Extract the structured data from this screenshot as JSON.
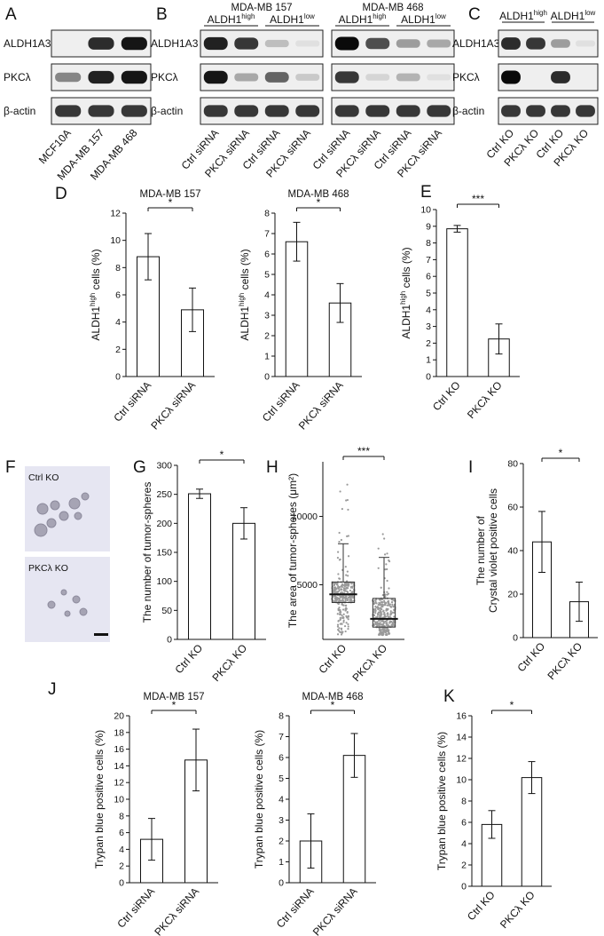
{
  "panels": {
    "A": {
      "letter": "A",
      "rows": [
        "ALDH1A3",
        "PKCλ",
        "β-actin"
      ],
      "lanes": [
        "MCF10A",
        "MDA-MB 157",
        "MDA-MB 468"
      ],
      "intensity": [
        [
          0,
          0.85,
          0.95
        ],
        [
          0.45,
          0.9,
          0.95
        ],
        [
          0.8,
          0.8,
          0.8
        ]
      ]
    },
    "B": {
      "letter": "B",
      "rows": [
        "ALDH1A3",
        "PKCλ",
        "β-actin"
      ],
      "blots": [
        {
          "title": "MDA-MB 157",
          "group_high": "ALDH1",
          "group_high_sup": "high",
          "group_low": "ALDH1",
          "group_low_sup": "low",
          "intensity": [
            [
              0.9,
              0.8,
              0.2,
              0.05
            ],
            [
              0.95,
              0.3,
              0.6,
              0.15
            ],
            [
              0.8,
              0.8,
              0.8,
              0.8
            ]
          ]
        },
        {
          "title": "MDA-MB 468",
          "group_high": "ALDH1",
          "group_high_sup": "high",
          "group_low": "ALDH1",
          "group_low_sup": "low",
          "intensity": [
            [
              1,
              0.7,
              0.35,
              0.3
            ],
            [
              0.8,
              0.1,
              0.25,
              0.05
            ],
            [
              0.8,
              0.8,
              0.8,
              0.8
            ]
          ]
        }
      ],
      "lanes": [
        "Ctrl siRNA",
        "PKCλ siRNA",
        "Ctrl siRNA",
        "PKCλ siRNA"
      ]
    },
    "C": {
      "letter": "C",
      "rows": [
        "ALDH1A3",
        "PKCλ",
        "β-actin"
      ],
      "group_high": "ALDH1",
      "group_high_sup": "high",
      "group_low": "ALDH1",
      "group_low_sup": "low",
      "lanes": [
        "Ctrl KO",
        "PKCλ KO",
        "Ctrl KO",
        "PKCλ KO"
      ],
      "intensity": [
        [
          0.85,
          0.8,
          0.35,
          0.05
        ],
        [
          1,
          0,
          0.85,
          0
        ],
        [
          0.8,
          0.8,
          0.8,
          0.8
        ]
      ]
    },
    "F": {
      "letter": "F",
      "image1_label": "Ctrl KO",
      "image2_label": "PKCλ KO"
    }
  },
  "chart_data": [
    {
      "id": "D1",
      "letter": "D",
      "type": "bar",
      "title": "MDA-MB 157",
      "ylabel": "ALDH1",
      "ylabel_sup": "high",
      "ylabel_rest": " cells (%)",
      "categories": [
        "Ctrl siRNA",
        "PKCλ siRNA"
      ],
      "values": [
        8.8,
        4.9
      ],
      "errors": [
        1.7,
        1.6
      ],
      "ylim": [
        0,
        12
      ],
      "ticks": [
        0,
        2,
        4,
        6,
        8,
        10,
        12
      ],
      "sig": "*"
    },
    {
      "id": "D2",
      "letter": "",
      "type": "bar",
      "title": "MDA-MB 468",
      "ylabel": "ALDH1",
      "ylabel_sup": "high",
      "ylabel_rest": " cells (%)",
      "categories": [
        "Ctrl siRNA",
        "PKCλ siRNA"
      ],
      "values": [
        6.6,
        3.6
      ],
      "errors": [
        0.95,
        0.95
      ],
      "ylim": [
        0,
        8
      ],
      "ticks": [
        0,
        1,
        2,
        3,
        4,
        5,
        6,
        7,
        8
      ],
      "sig": "*"
    },
    {
      "id": "E",
      "letter": "E",
      "type": "bar",
      "title": "",
      "ylabel": "ALDH1",
      "ylabel_sup": "high",
      "ylabel_rest": " cells (%)",
      "categories": [
        "Ctrl KO",
        "PKCλ KO"
      ],
      "values": [
        8.85,
        2.25
      ],
      "errors": [
        0.2,
        0.9
      ],
      "ylim": [
        0,
        10
      ],
      "ticks": [
        0,
        1,
        2,
        3,
        4,
        5,
        6,
        7,
        8,
        9,
        10
      ],
      "sig": "***"
    },
    {
      "id": "G",
      "letter": "G",
      "type": "bar",
      "title": "",
      "ylabel": "The number of tumor-spheres",
      "ylabel_sup": "",
      "ylabel_rest": "",
      "categories": [
        "Ctrl KO",
        "PKCλ KO"
      ],
      "values": [
        251,
        200
      ],
      "errors": [
        8,
        27
      ],
      "ylim": [
        0,
        300
      ],
      "ticks": [
        0,
        50,
        100,
        150,
        200,
        250,
        300
      ],
      "sig": "*"
    },
    {
      "id": "H",
      "letter": "H",
      "type": "scatter",
      "title": "",
      "ylabel": "The area of tumor-spheres (μm²)",
      "ylabel_sup": "",
      "ylabel_rest": "",
      "categories": [
        "Ctrl KO",
        "PKCλ KO"
      ],
      "medians": [
        4300,
        2500
      ],
      "q1": [
        3700,
        1900
      ],
      "q3": [
        5200,
        4000
      ],
      "whisker_high": [
        8000,
        7000
      ],
      "max": [
        13500,
        9000
      ],
      "ylim": [
        1000,
        14000
      ],
      "ticks": [
        5000,
        10000
      ],
      "sig": "***"
    },
    {
      "id": "I",
      "letter": "I",
      "type": "bar",
      "title": "",
      "ylabel": "The number of",
      "ylabel_sup": "",
      "ylabel_rest": "Crystal violet positive cells",
      "categories": [
        "Ctrl KO",
        "PKCλ KO"
      ],
      "values": [
        44,
        16.5
      ],
      "errors": [
        14,
        9
      ],
      "ylim": [
        0,
        80
      ],
      "ticks": [
        0,
        20,
        40,
        60,
        80
      ],
      "sig": "*"
    },
    {
      "id": "J1",
      "letter": "J",
      "type": "bar",
      "title": "MDA-MB 157",
      "ylabel": "Trypan blue positive cells (%)",
      "ylabel_sup": "",
      "ylabel_rest": "",
      "categories": [
        "Ctrl siRNA",
        "PKCλ siRNA"
      ],
      "values": [
        5.2,
        14.7
      ],
      "errors": [
        2.5,
        3.7
      ],
      "ylim": [
        0,
        20
      ],
      "ticks": [
        0,
        2,
        4,
        6,
        8,
        10,
        12,
        14,
        16,
        18,
        20
      ],
      "sig": "*"
    },
    {
      "id": "J2",
      "letter": "",
      "type": "bar",
      "title": "MDA-MB 468",
      "ylabel": "Trypan blue positive cells (%)",
      "ylabel_sup": "",
      "ylabel_rest": "",
      "categories": [
        "Ctrl siRNA",
        "PKCλ siRNA"
      ],
      "values": [
        2.0,
        6.1
      ],
      "errors": [
        1.3,
        1.05
      ],
      "ylim": [
        0,
        8
      ],
      "ticks": [
        0,
        1,
        2,
        3,
        4,
        5,
        6,
        7,
        8
      ],
      "sig": "*"
    },
    {
      "id": "K",
      "letter": "K",
      "type": "bar",
      "title": "",
      "ylabel": "Trypan blue positive cells (%)",
      "ylabel_sup": "",
      "ylabel_rest": "",
      "categories": [
        "Ctrl KO",
        "PKCλ KO"
      ],
      "values": [
        5.8,
        10.2
      ],
      "errors": [
        1.3,
        1.5
      ],
      "ylim": [
        0,
        16
      ],
      "ticks": [
        0,
        2,
        4,
        6,
        8,
        10,
        12,
        14,
        16
      ],
      "sig": "*"
    }
  ]
}
